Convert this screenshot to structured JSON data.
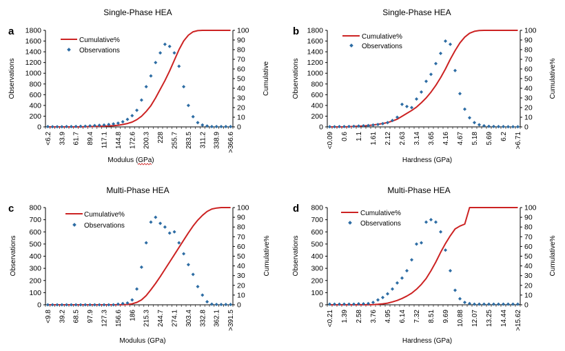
{
  "colors": {
    "cumulative": "#cc2222",
    "observations": "#2e6da4",
    "axis": "#000000"
  },
  "chart_data": [
    {
      "panel_label": "a",
      "type": "scatter",
      "title": "Single-Phase HEA",
      "xlabel": "Modulus (GPa)",
      "ylabel": "Observations",
      "y2label": "Cumulative",
      "ylim": [
        0,
        1800
      ],
      "y_ticks": [
        "0",
        "200",
        "400",
        "600",
        "800",
        "1000",
        "1200",
        "1400",
        "1600",
        "1800"
      ],
      "y2lim": [
        0,
        100
      ],
      "y2_ticks": [
        "0",
        "10",
        "20",
        "30",
        "40",
        "50",
        "60",
        "70",
        "80",
        "90",
        "100"
      ],
      "x_ticks": [
        "<6.2",
        "33.9",
        "61.7",
        "89.4",
        "117.1",
        "144.8",
        "172.6",
        "200.3",
        "228",
        "255.7",
        "283.5",
        "311.2",
        "338.9",
        ">366.6"
      ],
      "n_bins": 40,
      "legend": {
        "line": "Cumulative%",
        "markers": "Observations"
      },
      "series": [
        {
          "name": "Observations",
          "axis": "left",
          "values": [
            5,
            3,
            3,
            3,
            5,
            5,
            8,
            10,
            12,
            18,
            25,
            30,
            35,
            45,
            55,
            70,
            95,
            140,
            210,
            310,
            500,
            750,
            950,
            1200,
            1380,
            1540,
            1500,
            1380,
            1130,
            750,
            400,
            190,
            80,
            35,
            15,
            5,
            5,
            5,
            5,
            5
          ]
        },
        {
          "name": "Cumulative%",
          "axis": "right",
          "values": [
            0,
            0,
            0,
            0,
            0,
            0,
            0,
            0,
            0.2,
            0.3,
            0.4,
            0.5,
            0.7,
            1,
            1.3,
            1.7,
            2.5,
            3.5,
            5,
            7.5,
            11,
            16,
            22,
            30,
            39,
            48,
            58,
            69,
            80,
            89,
            95,
            98.5,
            99.7,
            100,
            100,
            100,
            100,
            100,
            100,
            100
          ]
        }
      ]
    },
    {
      "panel_label": "b",
      "type": "scatter",
      "title": "Single-Phase HEA",
      "xlabel": "Hardness (GPa)",
      "ylabel": "Observations",
      "y2label": "Cumulative%",
      "ylim": [
        0,
        1800
      ],
      "y_ticks": [
        "0",
        "200",
        "400",
        "600",
        "800",
        "1000",
        "1200",
        "1400",
        "1600",
        "1800"
      ],
      "y2lim": [
        0,
        100
      ],
      "y2_ticks": [
        "0",
        "10",
        "20",
        "30",
        "40",
        "50",
        "60",
        "70",
        "80",
        "90",
        "100"
      ],
      "x_ticks": [
        "<0.09",
        "0.6",
        "1.1",
        "1.61",
        "2.12",
        "2.63",
        "3.14",
        "3.65",
        "4.16",
        "4.67",
        "5.18",
        "5.69",
        "6.2",
        ">6.71"
      ],
      "n_bins": 40,
      "legend": {
        "line": "Cumulative%",
        "markers": "Observations"
      },
      "series": [
        {
          "name": "Observations",
          "axis": "left",
          "values": [
            3,
            3,
            5,
            5,
            8,
            10,
            15,
            20,
            25,
            35,
            45,
            60,
            80,
            120,
            180,
            420,
            380,
            360,
            520,
            650,
            850,
            980,
            1180,
            1370,
            1600,
            1540,
            1050,
            620,
            330,
            170,
            80,
            40,
            20,
            10,
            8,
            5,
            5,
            3,
            3,
            3
          ]
        },
        {
          "name": "Cumulative%",
          "axis": "right",
          "values": [
            0,
            0,
            0,
            0,
            0.2,
            0.4,
            0.7,
            1,
            1.4,
            2,
            2.7,
            3.5,
            4.5,
            6,
            8,
            11,
            14,
            17,
            20.5,
            25,
            30,
            36,
            43,
            51,
            60,
            70,
            79,
            87,
            93,
            97,
            99,
            99.8,
            100,
            100,
            100,
            100,
            100,
            100,
            100,
            100
          ]
        }
      ]
    },
    {
      "panel_label": "c",
      "type": "scatter",
      "title": "Multi-Phase HEA",
      "xlabel": "Modulus (GPa)",
      "ylabel": "Observations",
      "y2label": "Cumulative%",
      "ylim": [
        0,
        800
      ],
      "y_ticks": [
        "0",
        "100",
        "200",
        "300",
        "400",
        "500",
        "600",
        "700",
        "800"
      ],
      "y2lim": [
        0,
        100
      ],
      "y2_ticks": [
        "0",
        "10",
        "20",
        "30",
        "40",
        "50",
        "60",
        "70",
        "80",
        "90",
        "100"
      ],
      "x_ticks": [
        "<9.8",
        "39.2",
        "68.5",
        "97.9",
        "127.3",
        "156.6",
        "186",
        "215.3",
        "244.7",
        "274.1",
        "303.4",
        "332.8",
        "362.1",
        ">391.5"
      ],
      "n_bins": 40,
      "legend": {
        "line": "Cumulative%",
        "markers": "Observations"
      },
      "series": [
        {
          "name": "Observations",
          "axis": "left",
          "values": [
            0,
            0,
            0,
            0,
            0,
            0,
            0,
            0,
            0,
            0,
            0,
            0,
            0,
            0,
            0,
            5,
            10,
            15,
            40,
            130,
            310,
            510,
            680,
            720,
            670,
            640,
            590,
            600,
            510,
            420,
            330,
            250,
            150,
            80,
            25,
            5,
            3,
            2,
            2,
            2
          ]
        },
        {
          "name": "Cumulative%",
          "axis": "right",
          "values": [
            0,
            0,
            0,
            0,
            0,
            0,
            0,
            0,
            0,
            0,
            0,
            0,
            0,
            0,
            0,
            0,
            0.1,
            0.3,
            1,
            2.5,
            5,
            9.5,
            15.5,
            22,
            29,
            36.5,
            44,
            51.5,
            59,
            66.5,
            74,
            81,
            87,
            92,
            96,
            98.5,
            99.5,
            100,
            100,
            100
          ]
        }
      ]
    },
    {
      "panel_label": "d",
      "type": "scatter",
      "title": "Multi-Phase HEA",
      "xlabel": "Hardness (GPa)",
      "ylabel": "Observations",
      "y2label": "Cumulative%",
      "ylim": [
        0,
        800
      ],
      "y_ticks": [
        "0",
        "100",
        "200",
        "300",
        "400",
        "500",
        "600",
        "700",
        "800"
      ],
      "y2lim": [
        0,
        100
      ],
      "y2_ticks": [
        "0",
        "10",
        "20",
        "30",
        "40",
        "50",
        "60",
        "70",
        "80",
        "90",
        "100"
      ],
      "x_ticks": [
        "<0.21",
        "1.39",
        "2.58",
        "3.76",
        "4.95",
        "6.14",
        "7.32",
        "8.51",
        "9.69",
        "10.88",
        "12.07",
        "13.25",
        "14.44",
        ">15.62"
      ],
      "n_bins": 40,
      "legend": {
        "line": "Cumulative%",
        "markers": "Observations"
      },
      "series": [
        {
          "name": "Observations",
          "axis": "left",
          "values": [
            5,
            5,
            5,
            5,
            5,
            5,
            8,
            8,
            10,
            20,
            40,
            60,
            90,
            130,
            180,
            220,
            280,
            370,
            500,
            510,
            680,
            700,
            680,
            600,
            450,
            280,
            120,
            50,
            20,
            10,
            5,
            5,
            5,
            5,
            5,
            5,
            5,
            5,
            5,
            5
          ]
        },
        {
          "name": "Cumulative%",
          "axis": "right",
          "values": [
            0,
            0,
            0,
            0,
            0,
            0,
            0,
            0,
            0,
            0.2,
            0.5,
            1,
            1.7,
            3,
            4.5,
            6.5,
            9,
            12,
            16,
            21,
            27,
            35,
            44,
            54,
            63,
            71,
            78,
            81,
            83,
            100,
            100,
            100,
            100,
            100,
            100,
            100,
            100,
            100,
            100,
            100
          ]
        }
      ]
    }
  ]
}
